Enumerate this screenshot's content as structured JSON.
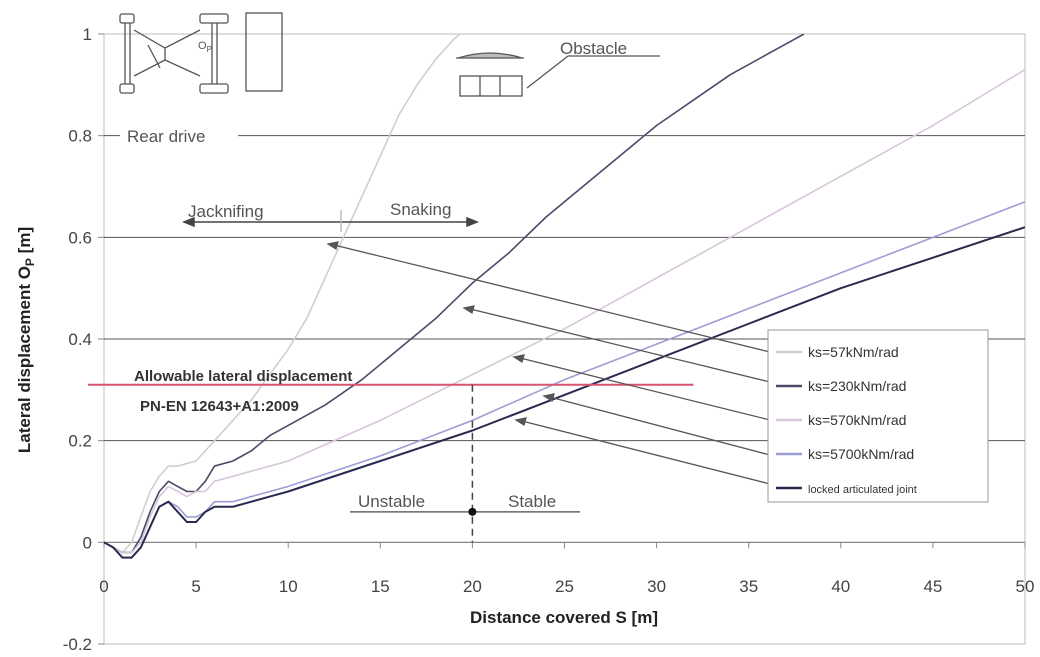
{
  "chart_data": {
    "type": "line",
    "xlabel": "Distance covered S  [m]",
    "ylabel": "Lateral displacement O",
    "ylabel_sub": "P",
    "ylabel_unit": " [m]",
    "xlim": [
      0,
      50
    ],
    "ylim": [
      -0.2,
      1.0
    ],
    "x_ticks": [
      0,
      5,
      10,
      15,
      20,
      25,
      30,
      35,
      40,
      45,
      50
    ],
    "y_ticks": [
      -0.2,
      0,
      0.2,
      0.4,
      0.6,
      0.8,
      1
    ],
    "y_tick_labels": [
      "-0.2",
      "0",
      "0.2",
      "0.4",
      "0.6",
      "0.8",
      "1"
    ],
    "grid": "horizontal",
    "legend_position": "bottom-right",
    "series": [
      {
        "name": "ks=57kNm/rad",
        "color": "#cfcfcf",
        "x": [
          0,
          0.5,
          1,
          1.5,
          2,
          2.5,
          3,
          3.5,
          4,
          5,
          6,
          7,
          8,
          9,
          10,
          11,
          12,
          13,
          14,
          15,
          16,
          17,
          18,
          19,
          20
        ],
        "y": [
          0,
          -0.01,
          -0.02,
          0.0,
          0.05,
          0.1,
          0.13,
          0.15,
          0.15,
          0.16,
          0.2,
          0.24,
          0.28,
          0.33,
          0.38,
          0.44,
          0.52,
          0.6,
          0.68,
          0.76,
          0.84,
          0.9,
          0.95,
          0.99,
          1.02
        ]
      },
      {
        "name": "ks=230kNm/rad",
        "color": "#4a4a6a",
        "x": [
          0,
          0.5,
          1,
          1.5,
          2,
          2.5,
          3,
          3.5,
          4,
          4.5,
          5,
          5.5,
          6,
          7,
          8,
          9,
          10,
          12,
          14,
          16,
          18,
          20,
          22,
          24,
          26,
          28,
          30,
          32,
          34,
          36,
          38
        ],
        "y": [
          0,
          -0.01,
          -0.02,
          -0.02,
          0.01,
          0.06,
          0.1,
          0.12,
          0.11,
          0.1,
          0.1,
          0.12,
          0.15,
          0.16,
          0.18,
          0.21,
          0.23,
          0.27,
          0.32,
          0.38,
          0.44,
          0.51,
          0.57,
          0.64,
          0.7,
          0.76,
          0.82,
          0.87,
          0.92,
          0.96,
          1.0
        ]
      },
      {
        "name": "ks=570kNm/rad",
        "color": "#d8c6da",
        "x": [
          0,
          0.5,
          1,
          1.5,
          2,
          2.5,
          3,
          3.5,
          4,
          4.5,
          5,
          5.5,
          6,
          7,
          8,
          9,
          10,
          15,
          20,
          25,
          30,
          35,
          40,
          45,
          50
        ],
        "y": [
          0,
          -0.01,
          -0.02,
          -0.02,
          0.0,
          0.05,
          0.09,
          0.11,
          0.1,
          0.09,
          0.1,
          0.1,
          0.12,
          0.13,
          0.14,
          0.15,
          0.16,
          0.24,
          0.33,
          0.42,
          0.52,
          0.62,
          0.72,
          0.82,
          0.93
        ]
      },
      {
        "name": "ks=5700kNm/rad",
        "color": "#9e9ed6",
        "x": [
          0,
          0.5,
          1,
          1.5,
          2,
          2.5,
          3,
          3.5,
          4,
          4.5,
          5,
          5.5,
          6,
          7,
          8,
          9,
          10,
          15,
          20,
          25,
          30,
          35,
          40,
          45,
          50
        ],
        "y": [
          0,
          -0.01,
          -0.03,
          -0.03,
          -0.01,
          0.03,
          0.07,
          0.08,
          0.07,
          0.05,
          0.05,
          0.06,
          0.08,
          0.08,
          0.09,
          0.1,
          0.11,
          0.17,
          0.24,
          0.32,
          0.39,
          0.46,
          0.53,
          0.6,
          0.67
        ]
      },
      {
        "name": "locked articulated joint",
        "color": "#2a2a50",
        "x": [
          0,
          0.5,
          1,
          1.5,
          2,
          2.5,
          3,
          3.5,
          4,
          4.5,
          5,
          5.5,
          6,
          7,
          8,
          9,
          10,
          15,
          20,
          25,
          30,
          35,
          40,
          45,
          50
        ],
        "y": [
          0,
          -0.01,
          -0.03,
          -0.03,
          -0.01,
          0.03,
          0.07,
          0.08,
          0.06,
          0.04,
          0.04,
          0.06,
          0.07,
          0.07,
          0.08,
          0.09,
          0.1,
          0.16,
          0.22,
          0.29,
          0.36,
          0.43,
          0.5,
          0.56,
          0.62
        ]
      }
    ],
    "allowable_line": {
      "y": 0.31,
      "x_end": 32,
      "color": "#d9546f",
      "label": "Allowable lateral displacement",
      "standard": "PN-EN 12643+A1:2009"
    },
    "stability_marker": {
      "x": 20,
      "y": 0.06
    },
    "annotations": {
      "obstacle": "Obstacle",
      "rear_drive": "Rear drive",
      "jackknifing": "Jacknifing",
      "snaking": "Snaking",
      "unstable": "Unstable",
      "stable": "Stable",
      "diagram_label_op": "O",
      "diagram_label_op_sub": "P"
    }
  }
}
